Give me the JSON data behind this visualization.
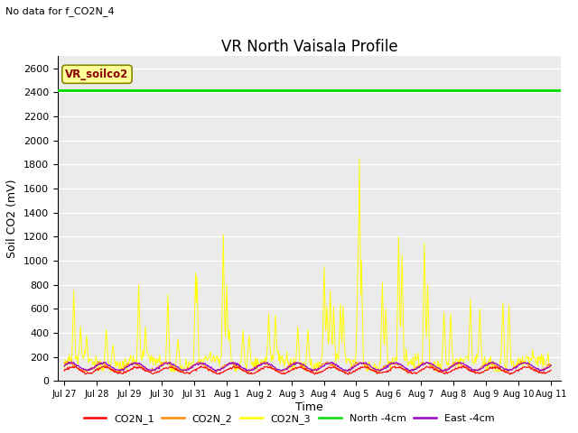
{
  "title": "VR North Vaisala Profile",
  "subtitle": "No data for f_CO2N_4",
  "ylabel": "Soil CO2 (mV)",
  "xlabel": "Time",
  "annotation": "VR_soilco2",
  "ylim": [
    0,
    2700
  ],
  "yticks": [
    0,
    200,
    400,
    600,
    800,
    1000,
    1200,
    1400,
    1600,
    1800,
    2000,
    2200,
    2400,
    2600
  ],
  "xtick_labels": [
    "Jul 27",
    "Jul 28",
    "Jul 29",
    "Jul 30",
    "Jul 31",
    "Aug 1",
    "Aug 2",
    "Aug 3",
    "Aug 4",
    "Aug 5",
    "Aug 6",
    "Aug 7",
    "Aug 8",
    "Aug 9",
    "Aug 10",
    "Aug 11"
  ],
  "xtick_positions": [
    0,
    1,
    2,
    3,
    4,
    5,
    6,
    7,
    8,
    9,
    10,
    11,
    12,
    13,
    14,
    15
  ],
  "north_4cm_value": 2420,
  "legend_entries": [
    {
      "label": "CO2N_1",
      "color": "#ff0000"
    },
    {
      "label": "CO2N_2",
      "color": "#ff8800"
    },
    {
      "label": "CO2N_3",
      "color": "#ffff00"
    },
    {
      "label": "North -4cm",
      "color": "#00dd00"
    },
    {
      "label": "East -4cm",
      "color": "#9900cc"
    }
  ],
  "bg_color": "#ebebeb",
  "title_fontsize": 12,
  "subtitle_fontsize": 8,
  "annotation_box_color": "#ffff99",
  "annotation_text_color": "#880000",
  "annotation_edge_color": "#888800"
}
